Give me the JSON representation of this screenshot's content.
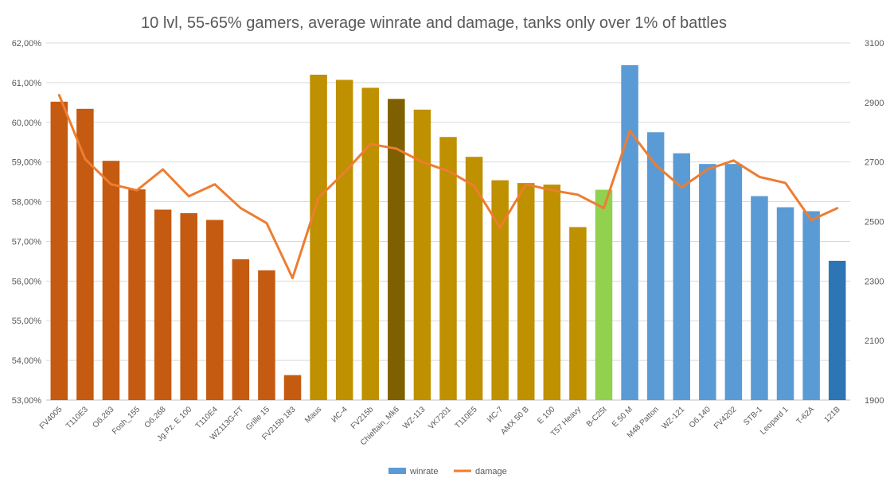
{
  "chart_data": {
    "type": "bar",
    "title": "10 lvl, 55-65% gamers, average winrate and damage, tanks only over 1% of battles",
    "categories": [
      "FV4005",
      "T110E3",
      "Об.263",
      "Fosh_155",
      "Об.268",
      "Jg.Pz. E 100",
      "T110E4",
      "WZ113G-FT",
      "Grille 15",
      "FV215b 183",
      "Maus",
      "ИС-4",
      "FV215b",
      "Chieftain_Mk6",
      "WZ-113",
      "VK7201",
      "T110E5",
      "ИС-7",
      "AMX 50 B",
      "E 100",
      "T57 Heavy",
      "B-C25t",
      "E 50 M",
      "M48 Patton",
      "WZ-121",
      "Об.140",
      "FV4202",
      "STB-1",
      "Leopard 1",
      "T-62A",
      "121B"
    ],
    "series": [
      {
        "name": "winrate",
        "axis": "left",
        "chart_type": "bar",
        "values": [
          60.52,
          60.34,
          59.03,
          58.31,
          57.8,
          57.71,
          57.54,
          56.55,
          56.27,
          53.63,
          61.2,
          61.07,
          60.87,
          60.59,
          60.32,
          59.63,
          59.13,
          58.54,
          58.47,
          58.43,
          57.36,
          58.3,
          61.44,
          59.75,
          59.22,
          58.95,
          58.95,
          58.14,
          57.86,
          57.76,
          56.51
        ],
        "colors": [
          "#c55a11",
          "#c55a11",
          "#c55a11",
          "#c55a11",
          "#c55a11",
          "#c55a11",
          "#c55a11",
          "#c55a11",
          "#c55a11",
          "#c55a11",
          "#bf9000",
          "#bf9000",
          "#bf9000",
          "#7f6000",
          "#bf9000",
          "#bf9000",
          "#bf9000",
          "#bf9000",
          "#bf9000",
          "#bf9000",
          "#bf9000",
          "#92d050",
          "#5b9bd5",
          "#5b9bd5",
          "#5b9bd5",
          "#5b9bd5",
          "#5b9bd5",
          "#5b9bd5",
          "#5b9bd5",
          "#5b9bd5",
          "#2e75b6"
        ]
      },
      {
        "name": "damage",
        "axis": "right",
        "chart_type": "line",
        "values": [
          2925,
          2710,
          2625,
          2605,
          2675,
          2585,
          2625,
          2545,
          2495,
          2310,
          2580,
          2665,
          2760,
          2745,
          2700,
          2670,
          2620,
          2480,
          2625,
          2605,
          2590,
          2545,
          2805,
          2690,
          2615,
          2675,
          2705,
          2650,
          2630,
          2505,
          2545
        ],
        "color": "#ed7d31"
      }
    ],
    "y_left": {
      "min": 53,
      "max": 62,
      "ticks": [
        "53,00%",
        "54,00%",
        "55,00%",
        "56,00%",
        "57,00%",
        "58,00%",
        "59,00%",
        "60,00%",
        "61,00%",
        "62,00%"
      ]
    },
    "y_right": {
      "min": 1900,
      "max": 3100,
      "ticks": [
        "1900",
        "2100",
        "2300",
        "2500",
        "2700",
        "2900",
        "3100"
      ]
    },
    "grid": true,
    "legend": {
      "position": "bottom",
      "items": [
        {
          "label": "winrate",
          "color": "#5b9bd5",
          "kind": "bar"
        },
        {
          "label": "damage",
          "color": "#ed7d31",
          "kind": "line"
        }
      ]
    }
  }
}
